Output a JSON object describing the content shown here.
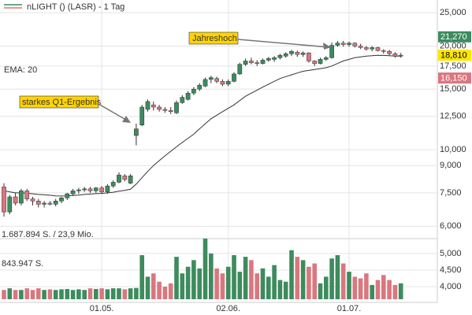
{
  "chart_data": {
    "type": "candlestick",
    "title": "nLIGHT () (LASR) - 1 Tag",
    "log_scale": true,
    "grid": true,
    "categories": [
      null,
      null,
      null,
      null,
      null,
      null,
      null,
      null,
      null,
      null,
      null,
      null,
      null,
      null,
      null,
      null,
      null,
      "01.05.",
      null,
      null,
      null,
      null,
      null,
      null,
      null,
      null,
      null,
      null,
      null,
      null,
      null,
      null,
      null,
      null,
      null,
      null,
      null,
      null,
      null,
      "02.06.",
      null,
      null,
      null,
      null,
      null,
      null,
      null,
      null,
      null,
      null,
      null,
      null,
      null,
      null,
      null,
      null,
      null,
      null,
      null,
      null,
      "01.07.",
      null,
      null,
      null,
      null,
      null,
      null,
      null,
      null,
      null
    ],
    "open": [
      7800,
      6600,
      7300,
      7000,
      7600,
      7200,
      7100,
      6950,
      7000,
      6950,
      7100,
      7250,
      7450,
      7600,
      7650,
      7700,
      7600,
      7750,
      7550,
      7850,
      8050,
      8400,
      8000,
      11000,
      11800,
      13100,
      13500,
      13300,
      13100,
      13000,
      12800,
      13700,
      14000,
      14600,
      15000,
      15300,
      16000,
      16100,
      15800,
      15500,
      15800,
      16600,
      17700,
      18100,
      17900,
      17800,
      18200,
      18300,
      18500,
      18700,
      19000,
      19200,
      18900,
      19100,
      18100,
      17800,
      18300,
      18500,
      20100,
      20400,
      20200,
      20400,
      20000,
      19800,
      19600,
      19800,
      19400,
      19300,
      19000,
      18700
    ],
    "high": [
      8000,
      7400,
      7500,
      7700,
      7700,
      7300,
      7200,
      7100,
      7100,
      7200,
      7300,
      7500,
      7700,
      7750,
      7800,
      7800,
      7800,
      7850,
      7950,
      8150,
      8600,
      8500,
      8500,
      11900,
      13500,
      14000,
      13800,
      13500,
      13300,
      13300,
      13900,
      14400,
      14800,
      15200,
      15600,
      16200,
      16400,
      16300,
      16000,
      16000,
      16800,
      17900,
      18400,
      18500,
      18200,
      18400,
      18600,
      18700,
      19000,
      19200,
      19500,
      19400,
      19300,
      19200,
      18200,
      18500,
      18700,
      20500,
      20700,
      20700,
      20600,
      20500,
      20300,
      20000,
      20000,
      19900,
      19600,
      19500,
      19200,
      19100
    ],
    "low": [
      6400,
      6500,
      6900,
      6900,
      7100,
      6900,
      6800,
      6800,
      6900,
      6850,
      7000,
      7150,
      7350,
      7450,
      7550,
      7500,
      7500,
      7450,
      7450,
      7750,
      8000,
      8100,
      7950,
      10300,
      11700,
      12900,
      13000,
      12900,
      12800,
      12700,
      12700,
      13600,
      13900,
      14400,
      14800,
      15200,
      15600,
      15600,
      15300,
      15300,
      15700,
      16500,
      17500,
      17700,
      17500,
      17700,
      18000,
      18000,
      18300,
      18500,
      18700,
      18600,
      18600,
      17900,
      17500,
      17700,
      18100,
      18400,
      19900,
      19900,
      19900,
      19800,
      19600,
      19400,
      19300,
      19300,
      19000,
      18800,
      18500,
      18500
    ],
    "close": [
      6600,
      7300,
      7000,
      7600,
      7200,
      7100,
      6950,
      7000,
      6950,
      7100,
      7250,
      7450,
      7600,
      7650,
      7700,
      7600,
      7750,
      7550,
      7850,
      8050,
      8450,
      8200,
      8400,
      11500,
      13300,
      13800,
      13300,
      13100,
      13000,
      12900,
      13700,
      14200,
      14600,
      15000,
      15400,
      16000,
      16200,
      15800,
      15500,
      15800,
      16600,
      17700,
      18100,
      17900,
      17800,
      18200,
      18400,
      18500,
      18800,
      19000,
      19300,
      18900,
      19100,
      18100,
      17800,
      18300,
      18500,
      20100,
      20400,
      20200,
      20400,
      20000,
      19800,
      19600,
      19800,
      19400,
      19300,
      19000,
      18700,
      18810
    ],
    "up_color": "#3d8b5e",
    "down_color": "#d9777f",
    "ema": {
      "name": "EMA: 20",
      "color": "#333333",
      "values": [
        7600,
        7550,
        7500,
        7500,
        7480,
        7450,
        7420,
        7400,
        7380,
        7350,
        7340,
        7350,
        7370,
        7390,
        7420,
        7440,
        7460,
        7470,
        7500,
        7530,
        7580,
        7620,
        7680,
        7950,
        8300,
        8650,
        9000,
        9300,
        9600,
        9900,
        10200,
        10500,
        10800,
        11100,
        11500,
        11900,
        12300,
        12600,
        12900,
        13200,
        13500,
        13900,
        14300,
        14600,
        14900,
        15200,
        15500,
        15800,
        16100,
        16300,
        16500,
        16700,
        16900,
        17000,
        17100,
        17200,
        17300,
        17500,
        17800,
        18100,
        18300,
        18500,
        18600,
        18700,
        18750,
        18800,
        18780,
        18750,
        18700,
        18700
      ]
    },
    "ylim": [
      5700,
      26500
    ],
    "yticks": [
      {
        "value": 6000,
        "label": "6,000"
      },
      {
        "value": 7500,
        "label": "7,500"
      },
      {
        "value": 9000,
        "label": "9,000"
      },
      {
        "value": 10000,
        "label": "10,000"
      },
      {
        "value": 12500,
        "label": "12,500"
      },
      {
        "value": 15000,
        "label": "15,000"
      },
      {
        "value": 17500,
        "label": "17,500"
      },
      {
        "value": 20000,
        "label": "20,000"
      },
      {
        "value": 25000,
        "label": "25,000"
      }
    ],
    "price_markers": [
      {
        "value": 21270,
        "label": "21,270",
        "color": "#3d8b5e",
        "text_color": "#ffffff"
      },
      {
        "value": 18810,
        "label": "18,810",
        "color": "#ffe600",
        "text_color": "#000000"
      },
      {
        "value": 16150,
        "label": "16,150",
        "color": "#d9777f",
        "text_color": "#ffffff"
      }
    ],
    "annotations": [
      "Jahreshoch",
      "starkes Q1-Ergebnis"
    ],
    "volume": {
      "values": [
        3900,
        3950,
        3900,
        3900,
        3950,
        3900,
        3950,
        3900,
        3920,
        3900,
        3920,
        3930,
        3900,
        3920,
        3900,
        3950,
        3930,
        3950,
        3920,
        3950,
        3950,
        3920,
        3950,
        3960,
        4950,
        4300,
        4400,
        4150,
        4000,
        4100,
        4900,
        4400,
        4600,
        4800,
        4550,
        5450,
        5000,
        4550,
        4400,
        4600,
        4950,
        4450,
        4900,
        4800,
        4400,
        4550,
        4300,
        4650,
        4200,
        4150,
        5100,
        4900,
        4800,
        4600,
        4700,
        4100,
        4300,
        4850,
        4950,
        4700,
        4450,
        4300,
        4250,
        4400,
        4050,
        4200,
        4350,
        4200,
        4050,
        4100
      ],
      "ylim": [
        3620,
        5520
      ],
      "yticks": [
        {
          "value": 4000,
          "label": "4,000"
        },
        {
          "value": 4500,
          "label": "4,500"
        },
        {
          "value": 5000,
          "label": "5,000"
        }
      ],
      "max_label": "1.687.894 S. / 23,9 Mio.",
      "mid_label": "843.947 S."
    }
  }
}
